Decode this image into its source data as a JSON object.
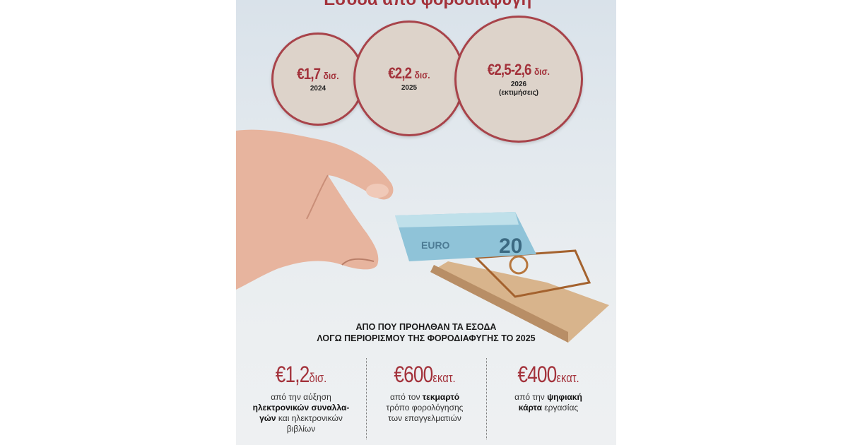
{
  "title": "Έσοδα από φοροδιαφυγή",
  "colors": {
    "accent": "#a3323b",
    "circle_fill": "#ddd3ca",
    "circle_border": "#a8434a"
  },
  "circles": [
    {
      "value": "€1,7",
      "unit": "δισ.",
      "year": "2024",
      "note": ""
    },
    {
      "value": "€2,2",
      "unit": "δισ.",
      "year": "2025",
      "note": ""
    },
    {
      "value": "€2,5-2,6",
      "unit": "δισ.",
      "year": "2026",
      "note": "(εκτιμήσεις)"
    }
  ],
  "heading": {
    "line1": "ΑΠΟ ΠΟΥ ΠΡΟΗΛΘΑΝ ΤΑ ΕΣΟΔΑ",
    "line2": "ΛΟΓΩ ΠΕΡΙΟΡΙΣΜΟΥ ΤΗΣ ΦΟΡΟΔΙΑΦΥΓΗΣ ΤΟ 2025"
  },
  "sources": [
    {
      "value": "€1,2",
      "unit": "δισ.",
      "d1": "από την αύξηση",
      "d2b": "ηλεκτρονικών συναλλα-",
      "d3b": "γών",
      "d3": " και ηλεκτρονικών",
      "d4": "βιβλίων"
    },
    {
      "value": "€600",
      "unit": "εκατ.",
      "d1": "από τον ",
      "d1b": "τεκμαρτό",
      "d2": "τρόπο φορολόγησης",
      "d3": "των επαγγελματιών"
    },
    {
      "value": "€400",
      "unit": "εκατ.",
      "d1": "από την ",
      "d1b": "ψηφιακή",
      "d2b": "κάρτα",
      "d2": " εργασίας"
    }
  ],
  "photo": {
    "banknote_text": "EURO",
    "banknote_value": "20"
  }
}
